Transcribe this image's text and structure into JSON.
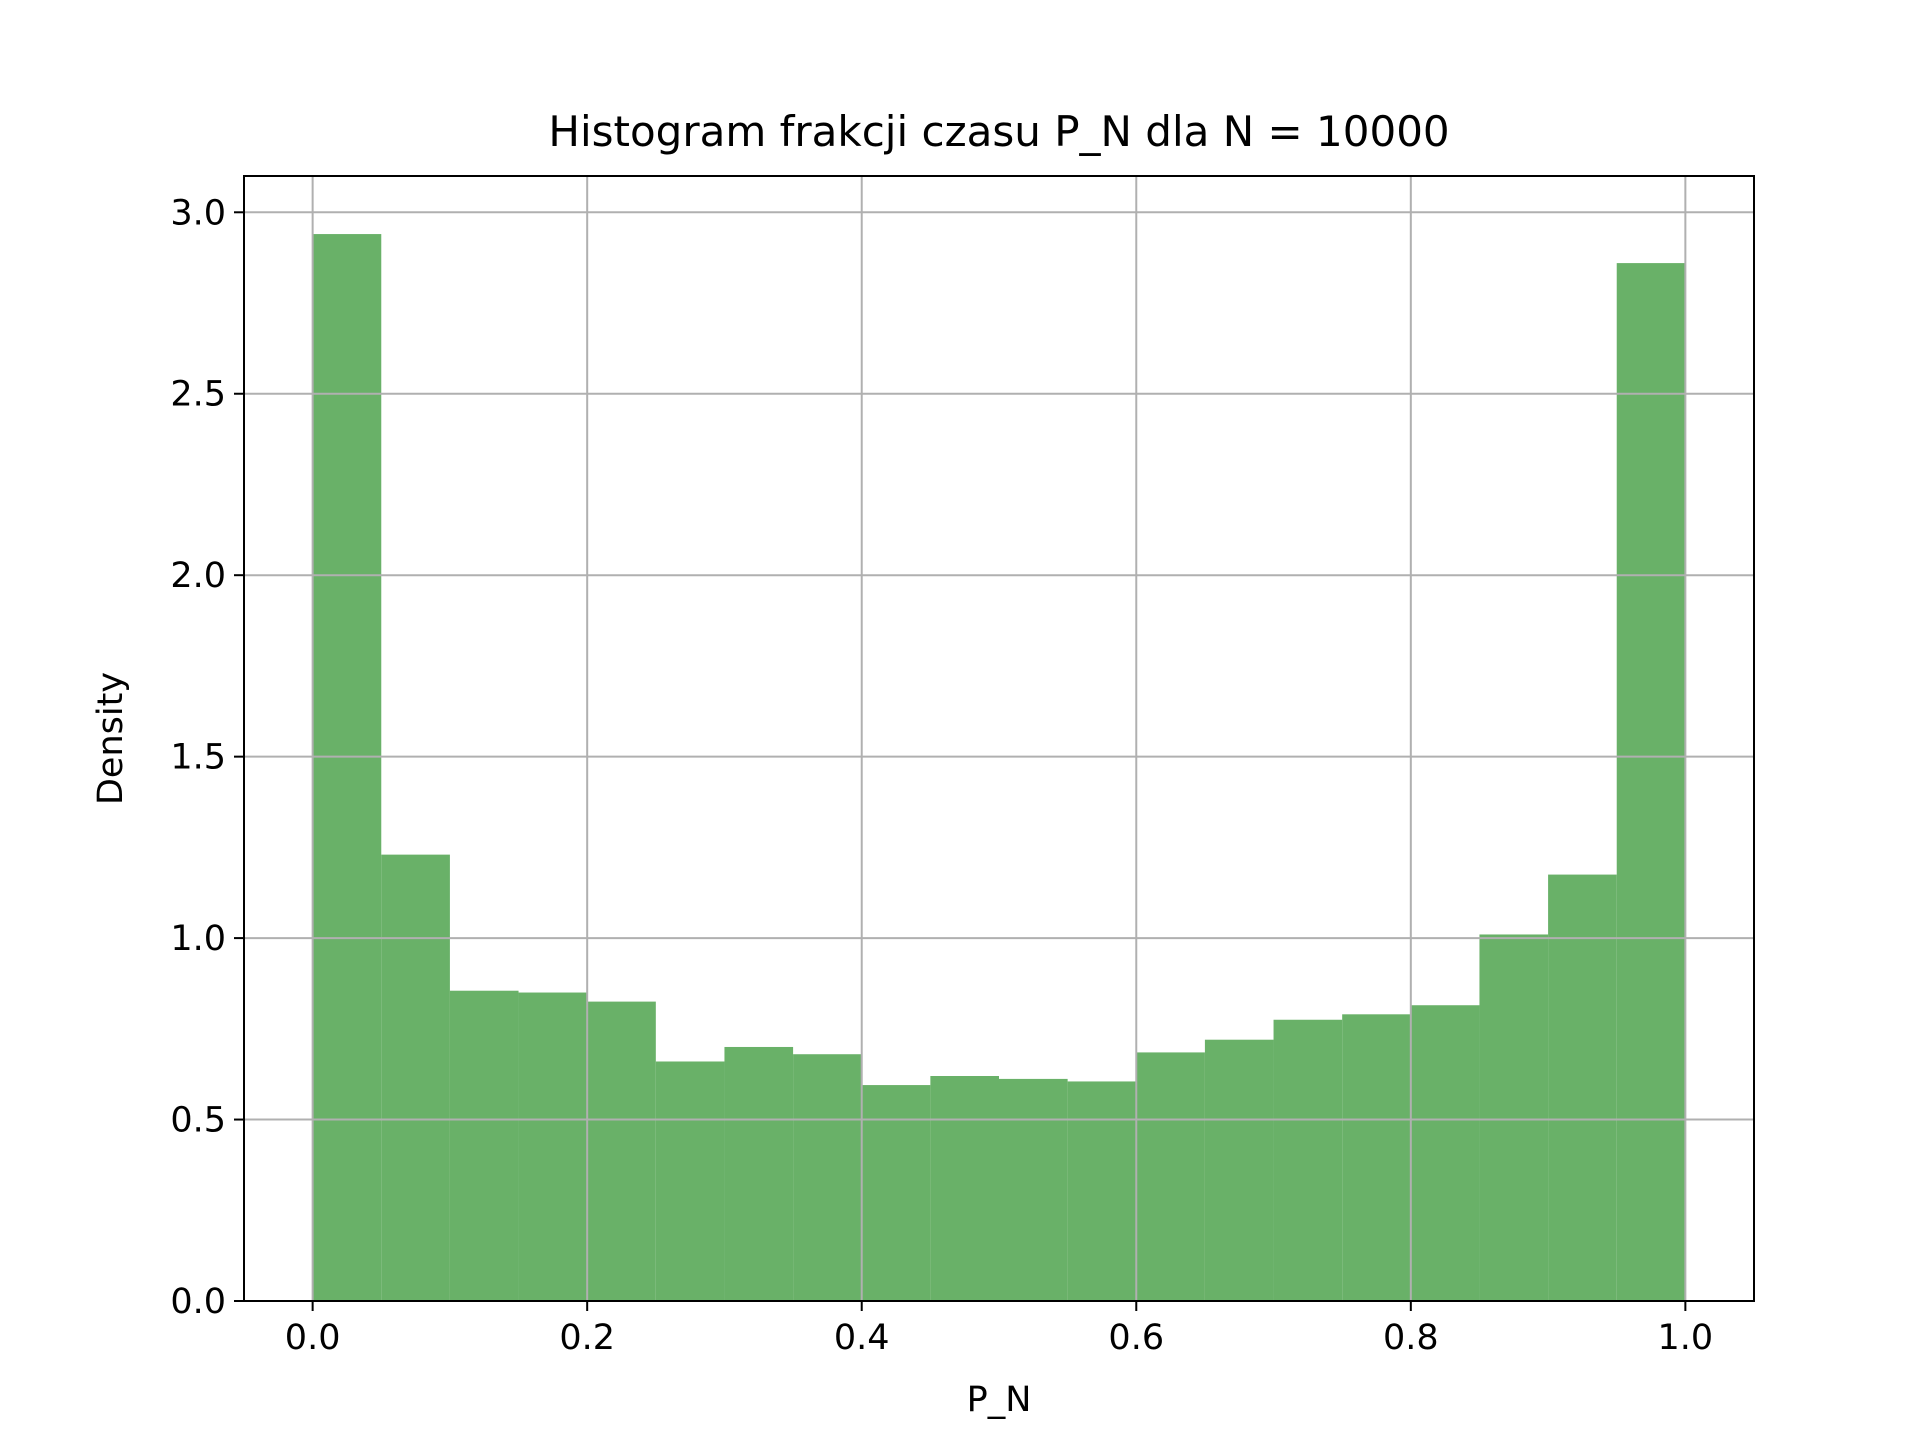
{
  "chart_data": {
    "type": "bar",
    "title": "Histogram frakcji czasu P_N dla N = 10000",
    "xlabel": "P_N",
    "ylabel": "Density",
    "xlim": [
      -0.05,
      1.05
    ],
    "ylim": [
      0,
      3.1
    ],
    "xticks": [
      0.0,
      0.2,
      0.4,
      0.6,
      0.8,
      1.0
    ],
    "xtick_labels": [
      "0.0",
      "0.2",
      "0.4",
      "0.6",
      "0.8",
      "1.0"
    ],
    "yticks": [
      0.0,
      0.5,
      1.0,
      1.5,
      2.0,
      2.5,
      3.0
    ],
    "ytick_labels": [
      "0.0",
      "0.5",
      "1.0",
      "1.5",
      "2.0",
      "2.5",
      "3.0"
    ],
    "grid": true,
    "bin_edges": [
      0.0,
      0.05,
      0.1,
      0.15,
      0.2,
      0.25,
      0.3,
      0.35,
      0.4,
      0.45,
      0.5,
      0.55,
      0.6,
      0.65,
      0.7,
      0.75,
      0.8,
      0.85,
      0.9,
      0.95,
      1.0
    ],
    "values": [
      2.94,
      1.23,
      0.855,
      0.85,
      0.825,
      0.66,
      0.7,
      0.68,
      0.595,
      0.62,
      0.612,
      0.605,
      0.685,
      0.72,
      0.775,
      0.79,
      0.815,
      1.01,
      1.175,
      2.86
    ],
    "bar_color": "#69b168"
  }
}
